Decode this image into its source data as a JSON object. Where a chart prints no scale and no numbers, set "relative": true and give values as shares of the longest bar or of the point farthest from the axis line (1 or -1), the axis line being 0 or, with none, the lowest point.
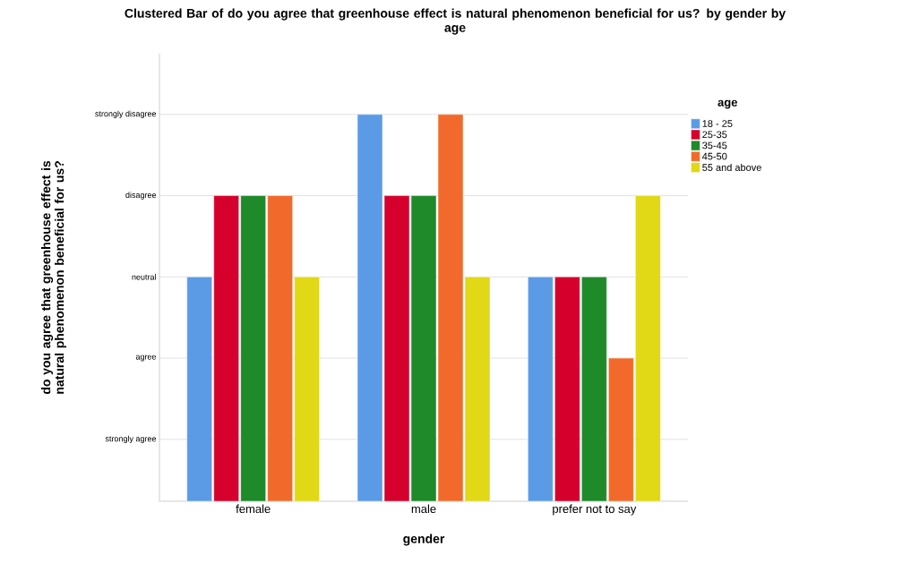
{
  "chart_data": {
    "type": "bar",
    "title": "Clustered Bar of do you agree that greenhouse effect is natural phenomenon beneficial for us? by gender by age",
    "xlabel": "gender",
    "annotations": [
      "do you agree that greenhouse effect is natural phenomenon beneficial for us?"
    ],
    "legend_title": "age",
    "categories": [
      "female",
      "male",
      "prefer not to say"
    ],
    "relative": true,
    "series": [
      {
        "name": "18 - 25",
        "color": "#5b9be6",
        "values": [
          0.58,
          1,
          0.58
        ]
      },
      {
        "name": "25-35",
        "color": "#d5002c",
        "values": [
          0.79,
          0.79,
          0.58
        ]
      },
      {
        "name": "35-45",
        "color": "#1e8a2a",
        "values": [
          0.79,
          0.79,
          0.58
        ]
      },
      {
        "name": "45-50",
        "color": "#f26a2b",
        "values": [
          0.79,
          1,
          0.37
        ]
      },
      {
        "name": "55 and above",
        "color": "#e1d816",
        "values": [
          0.58,
          0.58,
          0.79
        ]
      }
    ],
    "ref_lines": [
      {
        "axis": "y",
        "value": 0.16,
        "label": "strongly agree"
      },
      {
        "axis": "y",
        "value": 0.37,
        "label": "agree"
      },
      {
        "axis": "y",
        "value": 0.58,
        "label": "neutral"
      },
      {
        "axis": "y",
        "value": 0.79,
        "label": "disagree"
      },
      {
        "axis": "y",
        "value": 1,
        "label": "strongly disagree"
      }
    ],
    "legend": "top right"
  }
}
